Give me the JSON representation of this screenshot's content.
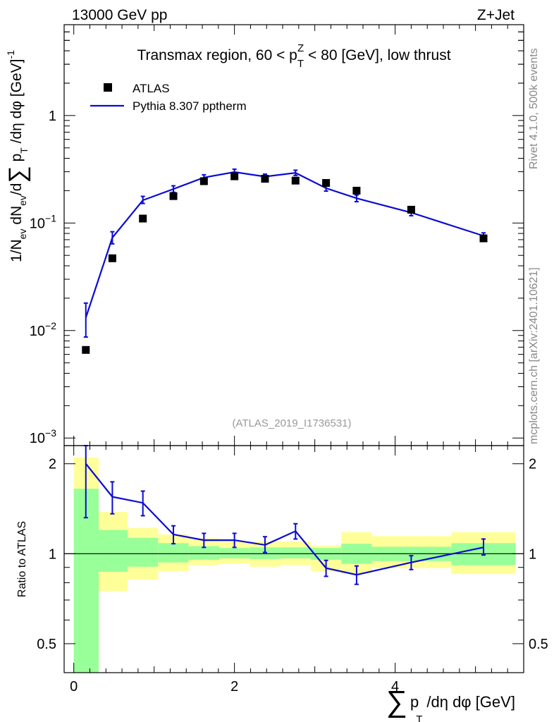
{
  "header": {
    "energy_label": "13000 GeV pp",
    "process_label": "Z+Jet"
  },
  "side": {
    "rivet_label": "Rivet 4.1.0,  500k events",
    "source_label": "mcplots.cern.ch [arXiv:2401.10621]"
  },
  "chart_data": [
    {
      "type": "scatter",
      "title": "Transmax region, 60 < p_T^Z < 80 [GeV], low thrust",
      "title_parts": {
        "pre": "Transmax region, 60 < p",
        "sub": "T",
        "sup": "Z",
        "post": " < 80 [GeV], low thrust"
      },
      "xlabel": "∑ p_T /dη dφ [GeV]",
      "xlabel_parts": {
        "sigma": "∑",
        "p": "p",
        "sub": "T",
        "rest": "/dη dφ [GeV]"
      },
      "ylabel": "1/N_ev dN_ev/d∑ p_T /dη dφ [GeV]^-1",
      "ylabel_parts": {
        "a": "1/N",
        "a_sub": "ev",
        "b": " dN",
        "b_sub": "ev",
        "c": "/d",
        "sigma": "∑",
        "d": " p",
        "d_sub": "T",
        "e": " /dη dφ  [GeV]",
        "e_sup": "-1"
      },
      "yscale": "log",
      "xlim": [
        -0.12,
        5.6
      ],
      "ylim": [
        0.00085,
        7.0
      ],
      "x_ticks": [
        "0",
        "2",
        "4"
      ],
      "y_ticks": [
        {
          "value": 0.001,
          "base": "10",
          "exp": "−3"
        },
        {
          "value": 0.01,
          "base": "10",
          "exp": "−2"
        },
        {
          "value": 0.1,
          "base": "10",
          "exp": "−1"
        },
        {
          "value": 1,
          "base": "1",
          "exp": ""
        }
      ],
      "watermark": "(ATLAS_2019_I1736531)",
      "legend_position": "top-left",
      "series": [
        {
          "name": "ATLAS",
          "kind": "markers",
          "x": [
            0.15,
            0.48,
            0.86,
            1.24,
            1.62,
            2.0,
            2.38,
            2.76,
            3.14,
            3.52,
            4.2,
            5.1
          ],
          "y": [
            0.0066,
            0.047,
            0.11,
            0.178,
            0.245,
            0.272,
            0.258,
            0.248,
            0.236,
            0.2,
            0.133,
            0.072
          ]
        },
        {
          "name": "Pythia 8.307 pptherm",
          "kind": "line",
          "color": "#0a0ad6",
          "x": [
            0.15,
            0.48,
            0.86,
            1.24,
            1.62,
            2.0,
            2.38,
            2.76,
            3.14,
            3.52,
            4.2,
            5.1
          ],
          "y": [
            0.0132,
            0.073,
            0.163,
            0.207,
            0.265,
            0.298,
            0.27,
            0.293,
            0.211,
            0.17,
            0.125,
            0.076
          ],
          "err_low": [
            0.0087,
            0.064,
            0.152,
            0.193,
            0.251,
            0.283,
            0.255,
            0.277,
            0.198,
            0.158,
            0.117,
            0.072
          ],
          "err_high": [
            0.018,
            0.083,
            0.177,
            0.222,
            0.281,
            0.317,
            0.285,
            0.31,
            0.225,
            0.182,
            0.134,
            0.081
          ]
        }
      ]
    },
    {
      "type": "line",
      "ylabel": "Ratio to ATLAS",
      "yscale": "log",
      "xlim": [
        -0.12,
        5.6
      ],
      "ylim": [
        0.4,
        2.3
      ],
      "y_ticks": [
        "0.5",
        "1",
        "2"
      ],
      "reference_line": 1,
      "bands": {
        "bin_edges": [
          0,
          0.31,
          0.67,
          1.05,
          1.43,
          1.81,
          2.19,
          2.57,
          2.95,
          3.33,
          3.71,
          4.7,
          5.5
        ],
        "outer_color": "#ffff99",
        "inner_color": "#99ff99",
        "outer_low": [
          0.35,
          0.75,
          0.82,
          0.875,
          0.915,
          0.925,
          0.905,
          0.915,
          0.875,
          0.86,
          0.895,
          0.855
        ],
        "outer_high": [
          2.1,
          1.38,
          1.22,
          1.16,
          1.125,
          1.1,
          1.1,
          1.1,
          1.065,
          1.18,
          1.145,
          1.18
        ],
        "inner_low": [
          0.37,
          0.87,
          0.905,
          0.935,
          0.955,
          0.965,
          0.96,
          0.965,
          0.955,
          0.925,
          0.945,
          0.915
        ],
        "inner_high": [
          1.65,
          1.2,
          1.13,
          1.085,
          1.06,
          1.045,
          1.05,
          1.05,
          1.045,
          1.08,
          1.055,
          1.085
        ]
      },
      "series": [
        {
          "name": "Pythia 8.307 pptherm",
          "color": "#0a0ad6",
          "x": [
            0.15,
            0.48,
            0.86,
            1.24,
            1.62,
            2.0,
            2.38,
            2.76,
            3.14,
            3.52,
            4.2,
            5.1
          ],
          "y": [
            2.0,
            1.55,
            1.48,
            1.16,
            1.11,
            1.11,
            1.07,
            1.19,
            0.895,
            0.85,
            0.935,
            1.05
          ],
          "err_low": [
            1.32,
            1.36,
            1.34,
            1.08,
            1.05,
            1.05,
            1.01,
            1.12,
            0.84,
            0.79,
            0.885,
            0.99
          ],
          "err_high": [
            2.3,
            1.74,
            1.62,
            1.24,
            1.17,
            1.17,
            1.14,
            1.26,
            0.95,
            0.91,
            0.985,
            1.12
          ]
        }
      ]
    }
  ]
}
